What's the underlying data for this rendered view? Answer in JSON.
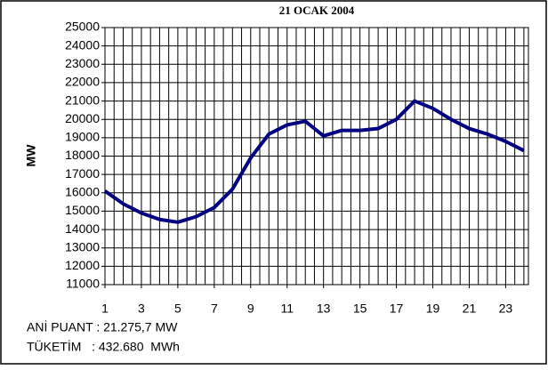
{
  "chart_data": {
    "type": "line",
    "title": "21 OCAK 2004",
    "y_label": "MW",
    "x": [
      1,
      2,
      3,
      4,
      5,
      6,
      7,
      8,
      9,
      10,
      11,
      12,
      13,
      14,
      15,
      16,
      17,
      18,
      19,
      20,
      21,
      22,
      23,
      24
    ],
    "series": [
      {
        "name": "MW",
        "color": "#000080",
        "values": [
          16100,
          15400,
          14900,
          14550,
          14400,
          14700,
          15200,
          16200,
          17900,
          19200,
          19700,
          19900,
          19100,
          19400,
          19400,
          19500,
          20000,
          21000,
          20600,
          20000,
          19500,
          19200,
          18800,
          18300
        ]
      }
    ],
    "xlim": [
      1,
      24.25
    ],
    "xticks": [
      1,
      3,
      5,
      7,
      9,
      11,
      13,
      15,
      17,
      19,
      21,
      23
    ],
    "ylim": [
      11000,
      25000
    ],
    "yticks": [
      11000,
      12000,
      13000,
      14000,
      15000,
      16000,
      17000,
      18000,
      19000,
      20000,
      21000,
      22000,
      23000,
      24000,
      25000
    ],
    "grid": true,
    "annotations": [
      "ANİ PUANT : 21.275,7 MW",
      "TÜKETİM   : 432.680  MWh"
    ]
  }
}
